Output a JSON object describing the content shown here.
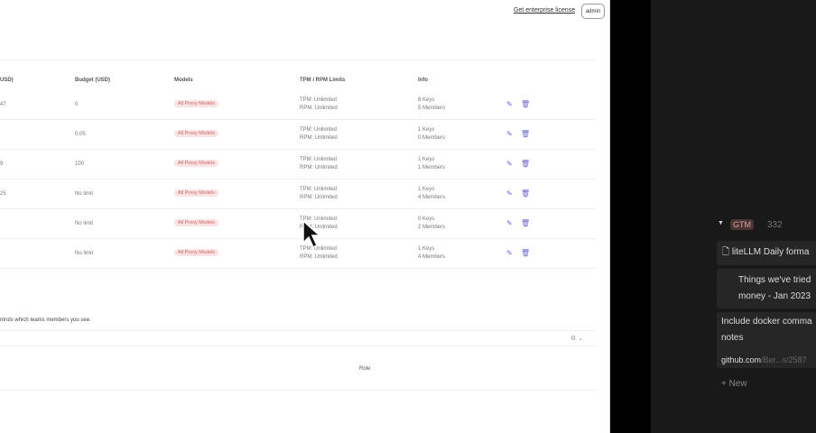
{
  "header": {
    "license_link": "Get enterprise license",
    "user_button": "admin"
  },
  "table": {
    "headers": [
      "USD)",
      "Budget (USD)",
      "Models",
      "TPM / RPM Limits",
      "Info"
    ],
    "rows": [
      {
        "spend": "47",
        "budget": "0",
        "models": "All Proxy Models",
        "tpm": "TPM: Unlimited",
        "rpm": "RPM: Unlimited",
        "keys": "8 Keys",
        "members": "5 Members"
      },
      {
        "spend": "",
        "budget": "0.05",
        "models": "All Proxy Models",
        "tpm": "TPM: Unlimited",
        "rpm": "RPM: Unlimited",
        "keys": "1 Keys",
        "members": "0 Members"
      },
      {
        "spend": "9",
        "budget": "100",
        "models": "All Proxy Models",
        "tpm": "TPM: Unlimited",
        "rpm": "RPM: Unlimited",
        "keys": "1 Keys",
        "members": "1 Members"
      },
      {
        "spend": "25",
        "budget": "No limit",
        "models": "All Proxy Models",
        "tpm": "TPM: Unlimited",
        "rpm": "RPM: Unlimited",
        "keys": "1 Keys",
        "members": "4 Members"
      },
      {
        "spend": "",
        "budget": "No limit",
        "models": "All Proxy Models",
        "tpm": "TPM: Unlimited",
        "rpm": "RPM: Unlimited",
        "keys": "0 Keys",
        "members": "2 Members"
      },
      {
        "spend": "",
        "budget": "No limit",
        "models": "All Proxy Models",
        "tpm": "TPM: Unlimited",
        "rpm": "RPM: Unlimited",
        "keys": "1 Keys",
        "members": "4 Members"
      }
    ]
  },
  "note": "ntrols which teams members you see.",
  "members_table": {
    "role_header": "Role"
  },
  "notion": {
    "group": "GTM",
    "count": "332",
    "cards": [
      "liteLLM Daily forma",
      "Things we've tried money - Jan 2023",
      "Include docker comma notes"
    ],
    "link_domain": "github.com",
    "link_path": "/Ber...s/2587",
    "new_label": "New"
  },
  "colors": {
    "accent": "#6b63d6",
    "pill_bg": "#fbe3e3"
  }
}
